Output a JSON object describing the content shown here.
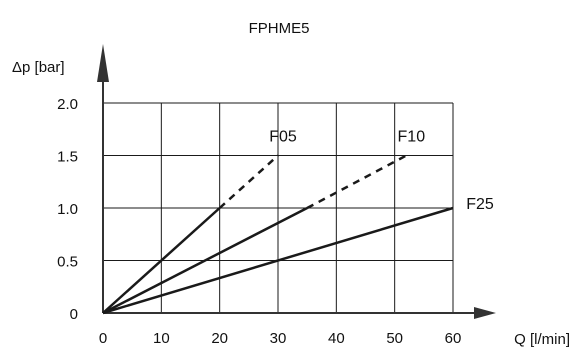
{
  "chart_data": {
    "type": "line",
    "title": "FPHME5",
    "xlabel": "Q [l/min]",
    "ylabel": "Δp [bar]",
    "xlim": [
      0,
      60
    ],
    "ylim": [
      0,
      2.0
    ],
    "xticks": [
      0,
      10,
      20,
      30,
      40,
      50,
      60
    ],
    "yticks": [
      0,
      0.5,
      1.0,
      1.5,
      2.0
    ],
    "xtick_labels": [
      "0",
      "10",
      "20",
      "30",
      "40",
      "50",
      "60"
    ],
    "ytick_labels": [
      "0",
      "0.5",
      "1.0",
      "1.5",
      "2.0"
    ],
    "grid": true,
    "series": [
      {
        "name": "F05",
        "solid": [
          [
            0,
            0
          ],
          [
            20,
            1.0
          ]
        ],
        "dashed": [
          [
            20,
            1.0
          ],
          [
            30,
            1.5
          ]
        ]
      },
      {
        "name": "F10",
        "solid": [
          [
            0,
            0
          ],
          [
            35,
            1.0
          ]
        ],
        "dashed": [
          [
            35,
            1.0
          ],
          [
            52,
            1.5
          ]
        ]
      },
      {
        "name": "F25",
        "solid": [
          [
            0,
            0
          ],
          [
            60,
            1.0
          ]
        ],
        "dashed": []
      }
    ],
    "colors": {
      "line": "#1a1a1a",
      "grid": "#1a1a1a",
      "axis": "#333333"
    }
  }
}
